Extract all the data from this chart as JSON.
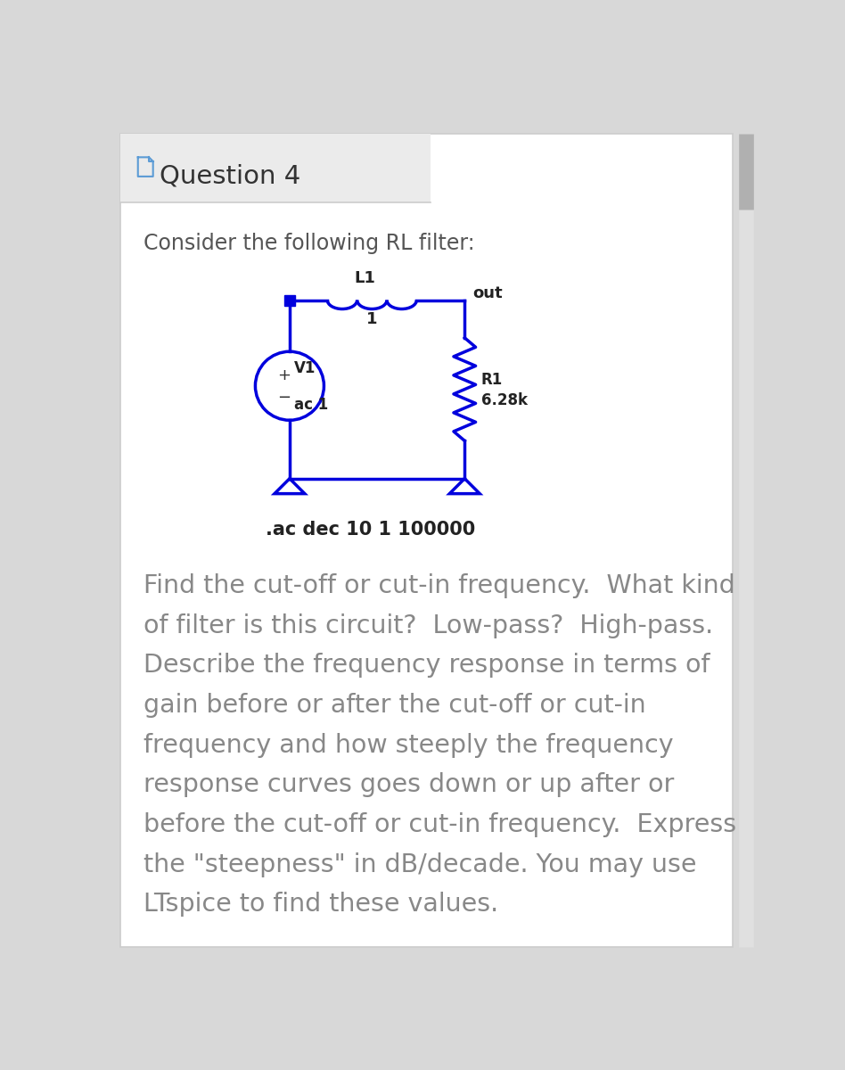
{
  "title": "Question 4",
  "bg_header": "#ebebeb",
  "bg_main": "#ffffff",
  "header_text_color": "#333333",
  "border_color": "#cccccc",
  "circuit_color": "#0000dd",
  "intro_text": "Consider the following RL filter:",
  "label_L1": "L1",
  "label_1": "1",
  "label_out": "out",
  "label_V1": "V1",
  "label_ac1": "ac 1",
  "label_R1": "R1",
  "label_R1_val": "6.28k",
  "label_spice": ".ac dec 10 1 100000",
  "body_lines": [
    "Find the cut-off or cut-in frequency.  What kind",
    "of filter is this circuit?  Low-pass?  High-pass.",
    "Describe the frequency response in terms of",
    "gain before or after the cut-off or cut-in",
    "frequency and how steeply the frequency",
    "response curves goes down or up after or",
    "before the cut-off or cut-in frequency.  Express",
    "the \"steepness\" in dB/decade. You may use",
    "LTspice to find these values."
  ],
  "page_bg": "#d8d8d8",
  "scrollbar_color": "#b0b0b0"
}
